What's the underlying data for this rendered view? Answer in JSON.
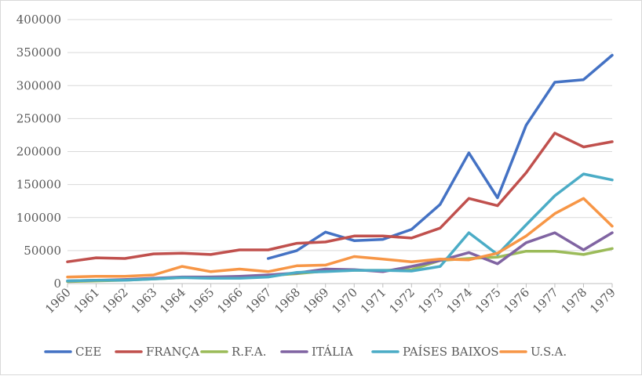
{
  "chart_data": {
    "type": "line",
    "title": "",
    "xlabel": "",
    "ylabel": "",
    "x": [
      "1960",
      "1961",
      "1962",
      "1963",
      "1964",
      "1965",
      "1966",
      "1967",
      "1968",
      "1969",
      "1970",
      "1971",
      "1972",
      "1973",
      "1974",
      "1975",
      "1976",
      "1977",
      "1978",
      "1979"
    ],
    "ylim": [
      0,
      400000
    ],
    "yticks": [
      "0",
      "50000",
      "100000",
      "150000",
      "200000",
      "250000",
      "300000",
      "350000",
      "400000"
    ],
    "grid": true,
    "legend_position": "bottom",
    "series": [
      {
        "name": "CEE",
        "color": "#4472C4",
        "values": [
          null,
          null,
          null,
          null,
          null,
          null,
          null,
          38000,
          50000,
          78000,
          65000,
          67000,
          82000,
          120000,
          198000,
          130000,
          240000,
          305000,
          309000,
          346000
        ]
      },
      {
        "name": "FRANÇA",
        "color": "#C0504D",
        "values": [
          33000,
          39000,
          38000,
          45000,
          46000,
          44000,
          51000,
          51000,
          61000,
          63000,
          72000,
          72000,
          69000,
          84000,
          129000,
          118000,
          168000,
          228000,
          207000,
          215000
        ]
      },
      {
        "name": "R.F.A.",
        "color": "#9BBB59",
        "values": [
          3000,
          4000,
          5000,
          7000,
          9000,
          10000,
          10000,
          12000,
          15000,
          19000,
          20000,
          20000,
          21000,
          35000,
          38000,
          40000,
          49000,
          49000,
          44000,
          53000
        ]
      },
      {
        "name": "ITÁLIA",
        "color": "#8064A2",
        "values": [
          4000,
          5000,
          6000,
          8000,
          10000,
          10000,
          11000,
          13000,
          16000,
          22000,
          21000,
          18000,
          26000,
          35000,
          47000,
          30000,
          62000,
          77000,
          51000,
          77000
        ]
      },
      {
        "name": "PAÍSES BAIXOS",
        "color": "#4BACC6",
        "values": [
          4000,
          5000,
          5000,
          7000,
          9000,
          8000,
          8000,
          10000,
          17000,
          18000,
          20000,
          20000,
          19000,
          26000,
          77000,
          44000,
          89000,
          133000,
          166000,
          157000
        ]
      },
      {
        "name": "U.S.A.",
        "color": "#F79646",
        "values": [
          10000,
          11000,
          11000,
          13000,
          26000,
          18000,
          22000,
          18000,
          27000,
          28000,
          41000,
          37000,
          33000,
          37000,
          36000,
          46000,
          72000,
          106000,
          129000,
          87000
        ]
      }
    ]
  }
}
